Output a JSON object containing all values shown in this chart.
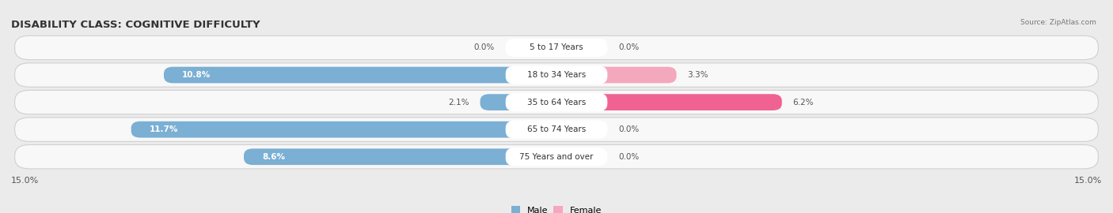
{
  "title": "DISABILITY CLASS: COGNITIVE DIFFICULTY",
  "source": "Source: ZipAtlas.com",
  "categories": [
    "5 to 17 Years",
    "18 to 34 Years",
    "35 to 64 Years",
    "65 to 74 Years",
    "75 Years and over"
  ],
  "male_values": [
    0.0,
    10.8,
    2.1,
    11.7,
    8.6
  ],
  "female_values": [
    0.0,
    3.3,
    6.2,
    0.0,
    0.0
  ],
  "max_val": 15.0,
  "male_color": "#7bafd4",
  "female_color_small": "#f4a8be",
  "female_color_large": "#f06292",
  "female_threshold": 5.0,
  "bg_color": "#ebebeb",
  "row_bg": "#f8f8f8",
  "label_fontsize": 7.5,
  "title_fontsize": 9.5,
  "axis_label_fontsize": 8,
  "legend_fontsize": 8,
  "value_label_fontsize": 7.5
}
